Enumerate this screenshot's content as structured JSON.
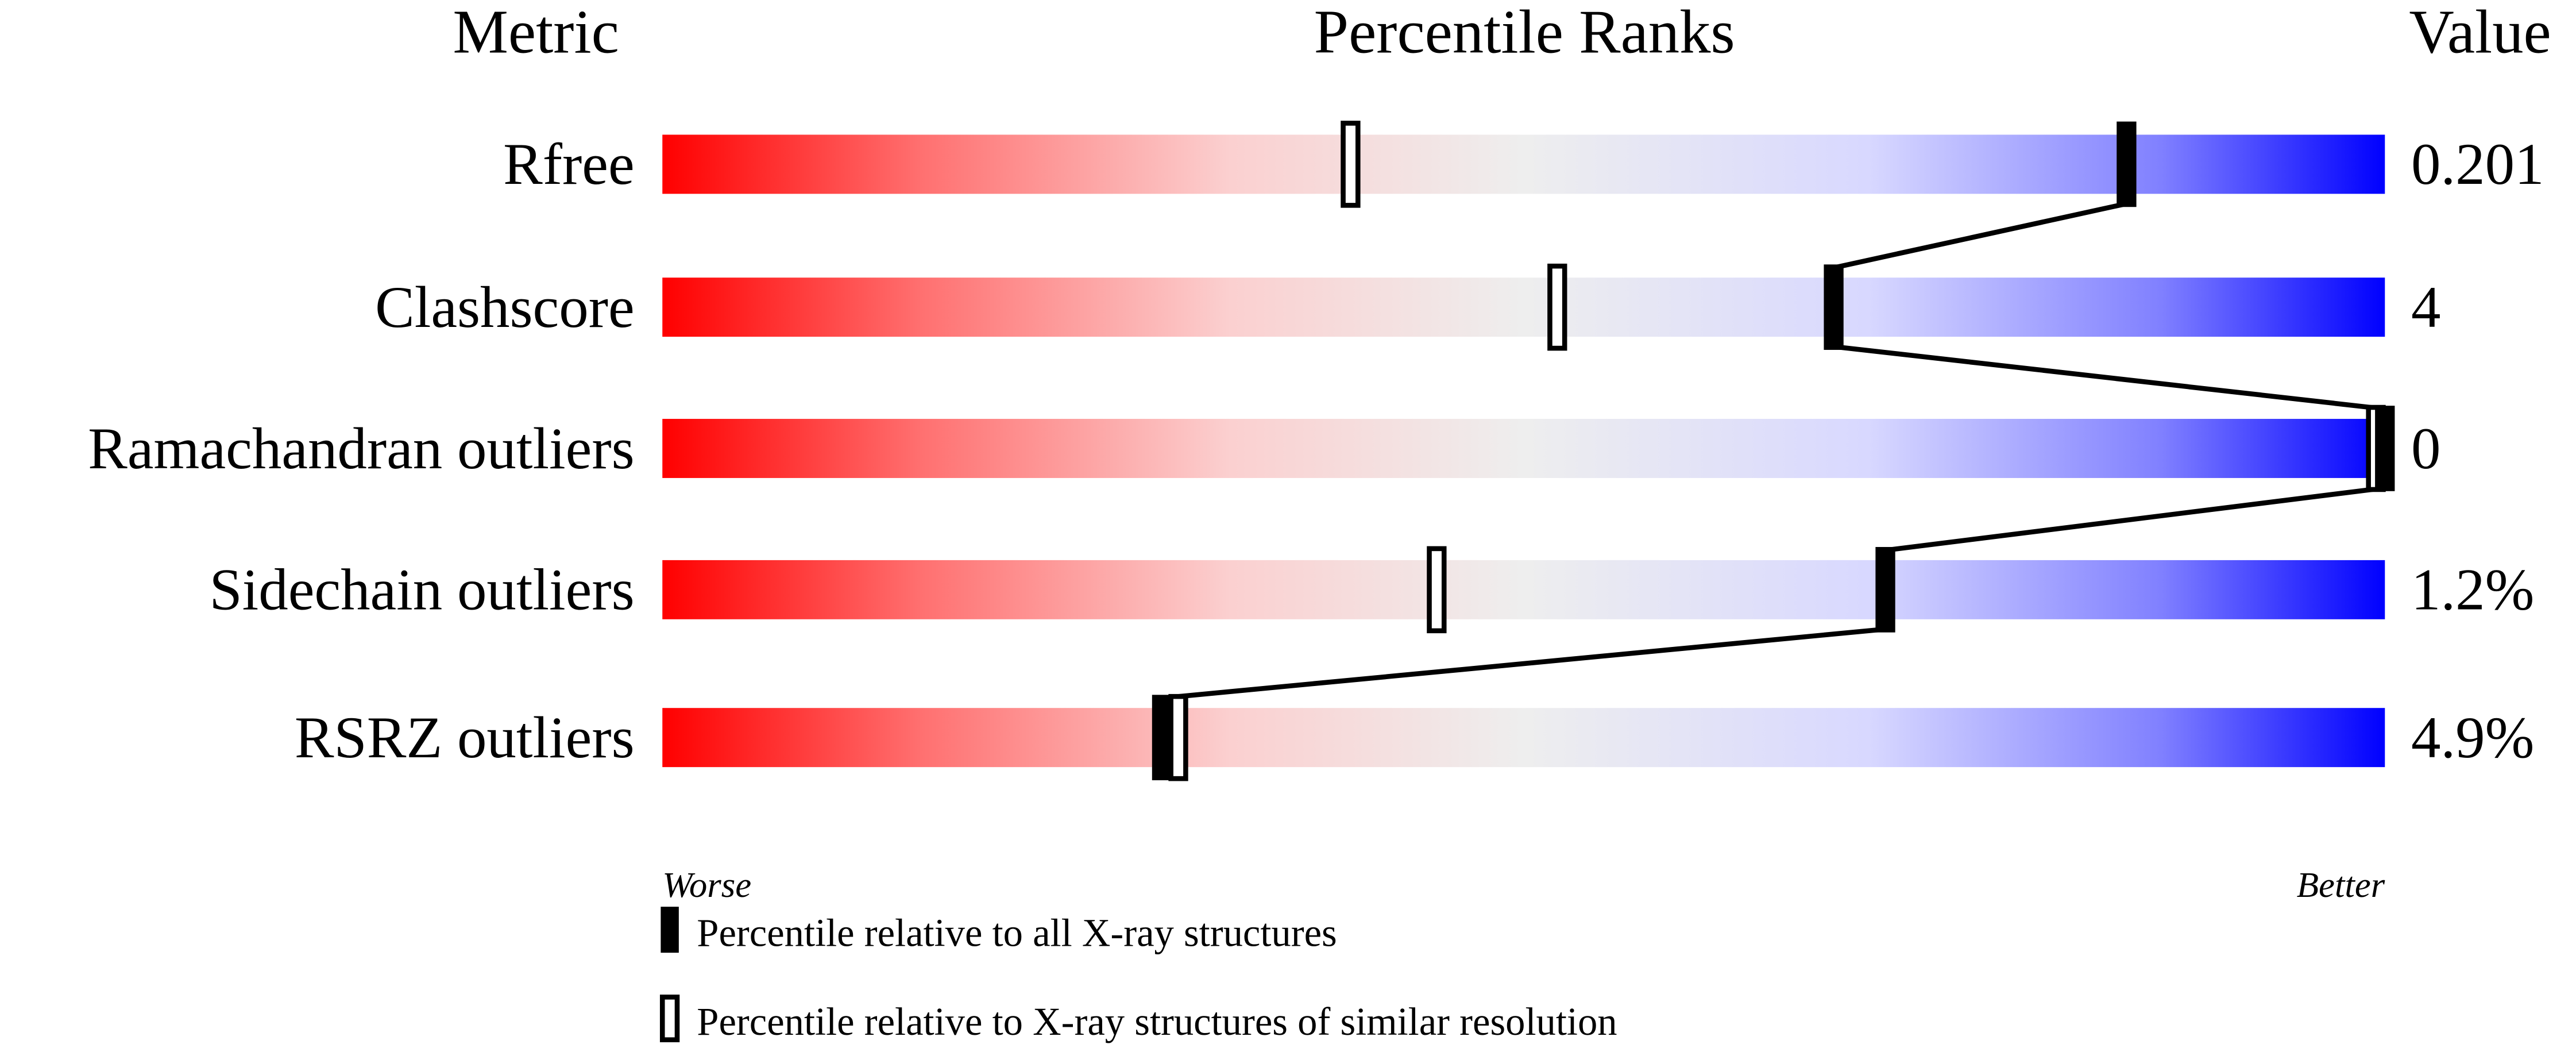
{
  "chart_data": {
    "type": "percentile-bars",
    "headers": {
      "metric": "Metric",
      "percentile": "Percentile Ranks",
      "value": "Value"
    },
    "xlim": [
      0,
      100
    ],
    "axis_labels": {
      "left": "Worse",
      "right": "Better"
    },
    "gradient_colors": [
      "#ff0000",
      "#ff7070",
      "#fbd0d0",
      "#eeeeee",
      "#d8d8ff",
      "#8080ff",
      "#0000ff"
    ],
    "rows": [
      {
        "metric": "Rfree",
        "value": "0.201",
        "percentile_all": 85,
        "percentile_similar": 40
      },
      {
        "metric": "Clashscore",
        "value": "4",
        "percentile_all": 68,
        "percentile_similar": 52
      },
      {
        "metric": "Ramachandran outliers",
        "value": "0",
        "percentile_all": 100,
        "percentile_similar": 100
      },
      {
        "metric": "Sidechain outliers",
        "value": "1.2%",
        "percentile_all": 71,
        "percentile_similar": 45
      },
      {
        "metric": "RSRZ outliers",
        "value": "4.9%",
        "percentile_all": 29,
        "percentile_similar": 30
      }
    ],
    "legend": [
      {
        "marker": "filled",
        "label": "Percentile relative to all X-ray structures"
      },
      {
        "marker": "open",
        "label": "Percentile relative to X-ray structures of similar resolution"
      }
    ]
  }
}
